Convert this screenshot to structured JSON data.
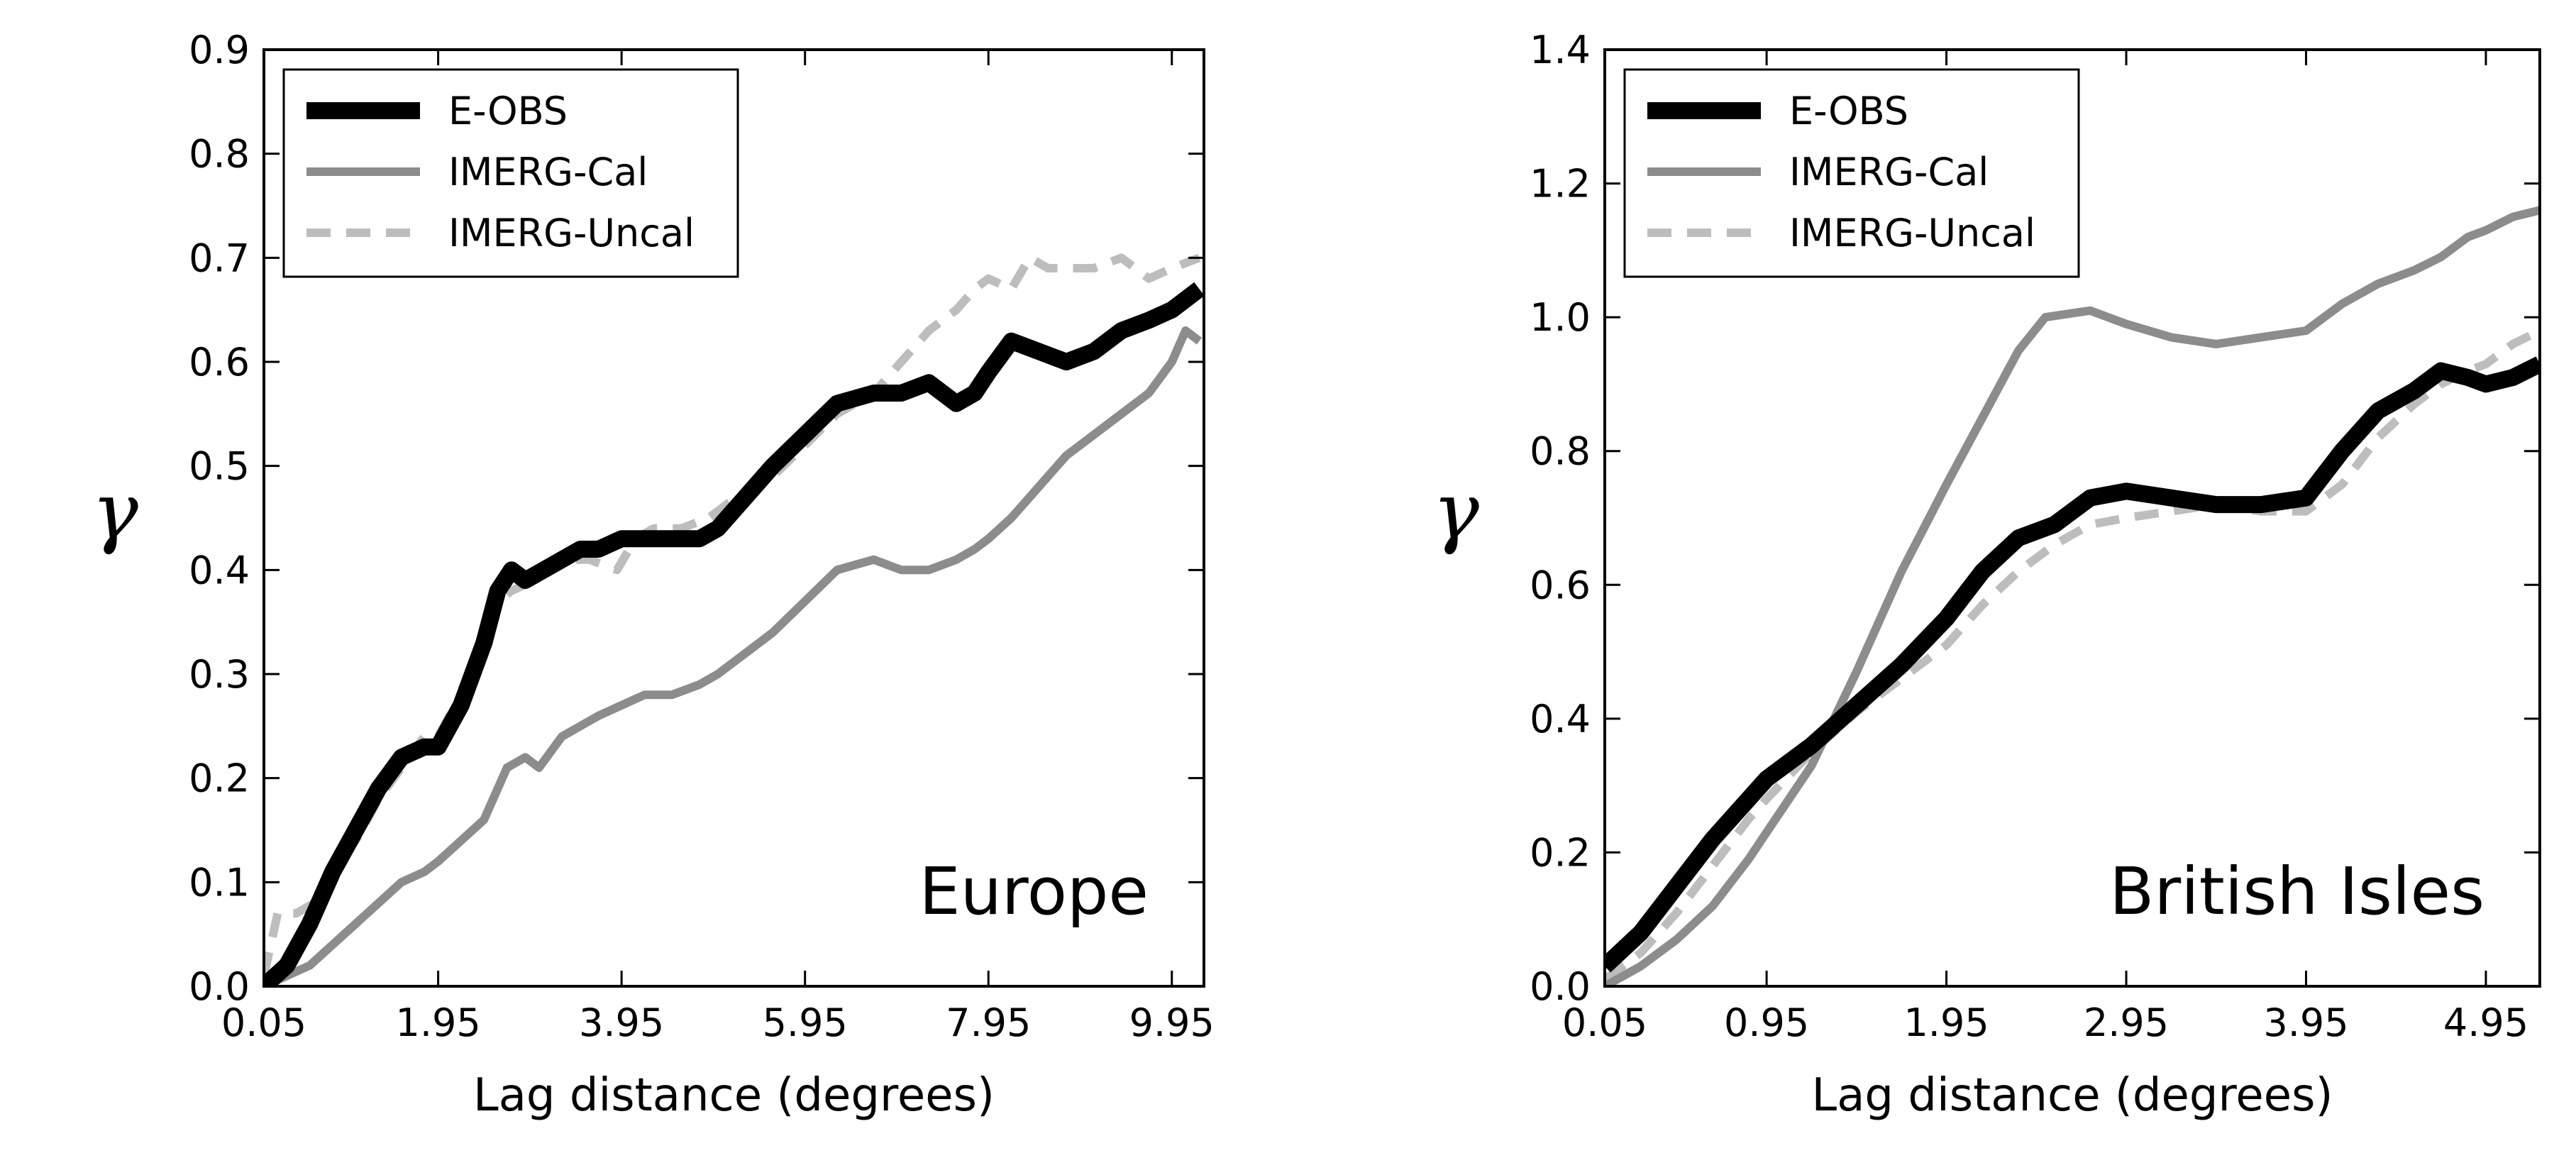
{
  "chart_data": [
    {
      "type": "line",
      "panel": "europe",
      "region_label": "Europe",
      "xlabel": "Lag distance (degrees)",
      "ylabel": "γ",
      "xlim": [
        0.05,
        10.3
      ],
      "ylim": [
        0.0,
        0.9
      ],
      "xticks": [
        0.05,
        1.95,
        3.95,
        5.95,
        7.95,
        9.95
      ],
      "xtick_labels": [
        "0.05",
        "1.95",
        "3.95",
        "5.95",
        "7.95",
        "9.95"
      ],
      "yticks": [
        0.0,
        0.1,
        0.2,
        0.3,
        0.4,
        0.5,
        0.6,
        0.7,
        0.8,
        0.9
      ],
      "ytick_labels": [
        "0.0",
        "0.1",
        "0.2",
        "0.3",
        "0.4",
        "0.5",
        "0.6",
        "0.7",
        "0.8",
        "0.9"
      ],
      "legend_position": "top-left",
      "series": [
        {
          "name": "E-OBS",
          "color": "#000000",
          "style": "solid-thick",
          "x": [
            0.05,
            0.3,
            0.55,
            0.8,
            1.05,
            1.3,
            1.55,
            1.8,
            1.95,
            2.2,
            2.45,
            2.6,
            2.75,
            2.9,
            3.1,
            3.3,
            3.5,
            3.7,
            3.95,
            4.2,
            4.5,
            4.8,
            5.0,
            5.3,
            5.6,
            5.95,
            6.3,
            6.7,
            7.0,
            7.3,
            7.6,
            7.8,
            7.95,
            8.2,
            8.5,
            8.8,
            9.1,
            9.4,
            9.7,
            9.95,
            10.25
          ],
          "values": [
            0.0,
            0.02,
            0.06,
            0.11,
            0.15,
            0.19,
            0.22,
            0.23,
            0.23,
            0.27,
            0.33,
            0.38,
            0.4,
            0.39,
            0.4,
            0.41,
            0.42,
            0.42,
            0.43,
            0.43,
            0.43,
            0.43,
            0.44,
            0.47,
            0.5,
            0.53,
            0.56,
            0.57,
            0.57,
            0.58,
            0.56,
            0.57,
            0.59,
            0.62,
            0.61,
            0.6,
            0.61,
            0.63,
            0.64,
            0.65,
            0.67
          ]
        },
        {
          "name": "IMERG-Cal",
          "color": "#8c8c8c",
          "style": "solid",
          "x": [
            0.05,
            0.3,
            0.55,
            0.8,
            1.05,
            1.3,
            1.55,
            1.8,
            1.95,
            2.2,
            2.45,
            2.7,
            2.9,
            3.05,
            3.3,
            3.5,
            3.7,
            3.95,
            4.2,
            4.5,
            4.8,
            5.0,
            5.3,
            5.6,
            5.95,
            6.3,
            6.7,
            7.0,
            7.3,
            7.6,
            7.8,
            7.95,
            8.2,
            8.5,
            8.8,
            9.1,
            9.4,
            9.7,
            9.95,
            10.1,
            10.25
          ],
          "values": [
            0.0,
            0.01,
            0.02,
            0.04,
            0.06,
            0.08,
            0.1,
            0.11,
            0.12,
            0.14,
            0.16,
            0.21,
            0.22,
            0.21,
            0.24,
            0.25,
            0.26,
            0.27,
            0.28,
            0.28,
            0.29,
            0.3,
            0.32,
            0.34,
            0.37,
            0.4,
            0.41,
            0.4,
            0.4,
            0.41,
            0.42,
            0.43,
            0.45,
            0.48,
            0.51,
            0.53,
            0.55,
            0.57,
            0.6,
            0.63,
            0.62
          ]
        },
        {
          "name": "IMERG-Uncal",
          "color": "#bdbdbd",
          "style": "dashed",
          "x": [
            0.05,
            0.2,
            0.4,
            0.6,
            0.8,
            1.05,
            1.3,
            1.55,
            1.8,
            1.95,
            2.2,
            2.45,
            2.6,
            2.75,
            3.0,
            3.3,
            3.6,
            3.9,
            4.1,
            4.3,
            4.6,
            4.9,
            5.2,
            5.6,
            5.95,
            6.3,
            6.7,
            7.0,
            7.3,
            7.6,
            7.8,
            7.95,
            8.2,
            8.4,
            8.6,
            8.8,
            9.1,
            9.4,
            9.7,
            9.95,
            10.25
          ],
          "values": [
            0.01,
            0.07,
            0.07,
            0.08,
            0.11,
            0.14,
            0.18,
            0.21,
            0.24,
            0.24,
            0.28,
            0.33,
            0.37,
            0.38,
            0.39,
            0.41,
            0.41,
            0.4,
            0.43,
            0.44,
            0.44,
            0.45,
            0.47,
            0.49,
            0.52,
            0.55,
            0.57,
            0.6,
            0.63,
            0.65,
            0.67,
            0.68,
            0.67,
            0.7,
            0.69,
            0.69,
            0.69,
            0.7,
            0.68,
            0.69,
            0.7
          ]
        }
      ]
    },
    {
      "type": "line",
      "panel": "british-isles",
      "region_label": "British Isles",
      "xlabel": "Lag distance (degrees)",
      "ylabel": "γ",
      "xlim": [
        0.05,
        5.25
      ],
      "ylim": [
        0.0,
        1.4
      ],
      "xticks": [
        0.05,
        0.95,
        1.95,
        2.95,
        3.95,
        4.95
      ],
      "xtick_labels": [
        "0.05",
        "0.95",
        "1.95",
        "2.95",
        "3.95",
        "4.95"
      ],
      "yticks": [
        0.0,
        0.2,
        0.4,
        0.6,
        0.8,
        1.0,
        1.2,
        1.4
      ],
      "ytick_labels": [
        "0.0",
        "0.2",
        "0.4",
        "0.6",
        "0.8",
        "1.0",
        "1.2",
        "1.4"
      ],
      "legend_position": "top-left",
      "series": [
        {
          "name": "E-OBS",
          "color": "#000000",
          "style": "solid-thick",
          "x": [
            0.05,
            0.25,
            0.45,
            0.65,
            0.85,
            0.95,
            1.2,
            1.45,
            1.7,
            1.95,
            2.15,
            2.35,
            2.55,
            2.75,
            2.95,
            3.2,
            3.45,
            3.7,
            3.95,
            4.15,
            4.35,
            4.55,
            4.7,
            4.85,
            4.95,
            5.1,
            5.25
          ],
          "values": [
            0.03,
            0.08,
            0.15,
            0.22,
            0.28,
            0.31,
            0.36,
            0.42,
            0.48,
            0.55,
            0.62,
            0.67,
            0.69,
            0.73,
            0.74,
            0.73,
            0.72,
            0.72,
            0.73,
            0.8,
            0.86,
            0.89,
            0.92,
            0.91,
            0.9,
            0.91,
            0.93
          ]
        },
        {
          "name": "IMERG-Cal",
          "color": "#8c8c8c",
          "style": "solid",
          "x": [
            0.05,
            0.25,
            0.45,
            0.65,
            0.85,
            0.95,
            1.2,
            1.45,
            1.7,
            1.95,
            2.15,
            2.35,
            2.5,
            2.75,
            2.95,
            3.2,
            3.45,
            3.7,
            3.95,
            4.15,
            4.35,
            4.55,
            4.7,
            4.85,
            4.95,
            5.1,
            5.25
          ],
          "values": [
            0.0,
            0.03,
            0.07,
            0.12,
            0.19,
            0.23,
            0.33,
            0.47,
            0.62,
            0.75,
            0.85,
            0.95,
            1.0,
            1.01,
            0.99,
            0.97,
            0.96,
            0.97,
            0.98,
            1.02,
            1.05,
            1.07,
            1.09,
            1.12,
            1.13,
            1.15,
            1.16
          ]
        },
        {
          "name": "IMERG-Uncal",
          "color": "#bdbdbd",
          "style": "dashed",
          "x": [
            0.05,
            0.25,
            0.45,
            0.65,
            0.85,
            0.95,
            1.2,
            1.45,
            1.7,
            1.95,
            2.15,
            2.35,
            2.55,
            2.75,
            2.95,
            3.2,
            3.45,
            3.7,
            3.95,
            4.15,
            4.35,
            4.55,
            4.7,
            4.85,
            4.95,
            5.1,
            5.25
          ],
          "values": [
            0.01,
            0.05,
            0.11,
            0.18,
            0.25,
            0.28,
            0.35,
            0.41,
            0.46,
            0.51,
            0.57,
            0.62,
            0.66,
            0.69,
            0.7,
            0.71,
            0.72,
            0.71,
            0.71,
            0.75,
            0.82,
            0.87,
            0.9,
            0.92,
            0.93,
            0.96,
            0.98
          ]
        }
      ]
    }
  ]
}
